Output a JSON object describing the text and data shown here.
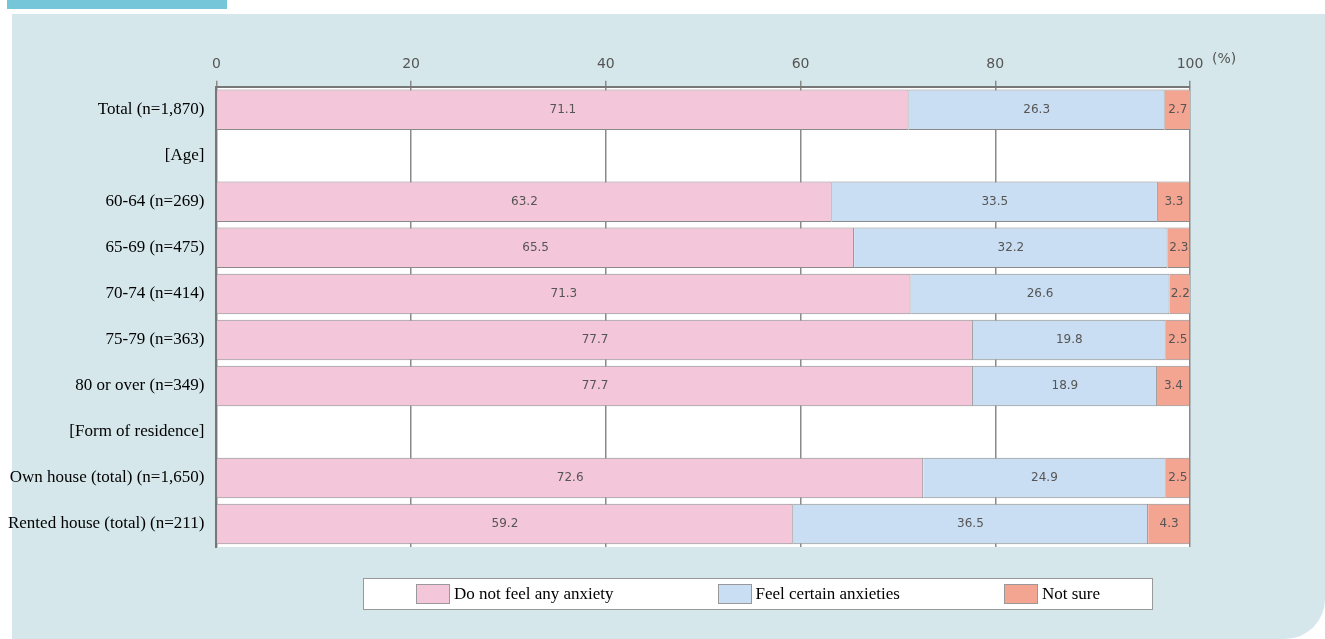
{
  "chart_data": {
    "type": "bar",
    "orientation": "horizontal",
    "stacked": true,
    "xlabel": "(%)",
    "categories": [
      "Total (n=1,870)",
      "[Age]",
      "60-64 (n=269)",
      "65-69 (n=475)",
      "70-74 (n=414)",
      "75-79 (n=363)",
      "80 or over (n=349)",
      "[Form of residence]",
      "Own house (total) (n=1,650)",
      "Rented house (total) (n=211)"
    ],
    "series": [
      {
        "name": "Do not feel any anxiety",
        "color": "#f4c6d9",
        "values": [
          71.1,
          null,
          63.2,
          65.5,
          71.3,
          77.7,
          77.7,
          null,
          72.6,
          59.2
        ]
      },
      {
        "name": "Feel certain anxieties",
        "color": "#c9def2",
        "values": [
          26.3,
          null,
          33.5,
          32.2,
          26.6,
          19.8,
          18.9,
          null,
          24.9,
          36.5
        ]
      },
      {
        "name": "Not sure",
        "color": "#f4a592",
        "values": [
          2.7,
          null,
          3.3,
          2.3,
          2.2,
          2.5,
          3.4,
          null,
          2.5,
          4.3
        ]
      }
    ],
    "xlim": [
      0,
      100
    ],
    "xticks": [
      0,
      20,
      40,
      60,
      80,
      100
    ],
    "grid": "x",
    "legend": "bottom",
    "data_labels": true
  }
}
